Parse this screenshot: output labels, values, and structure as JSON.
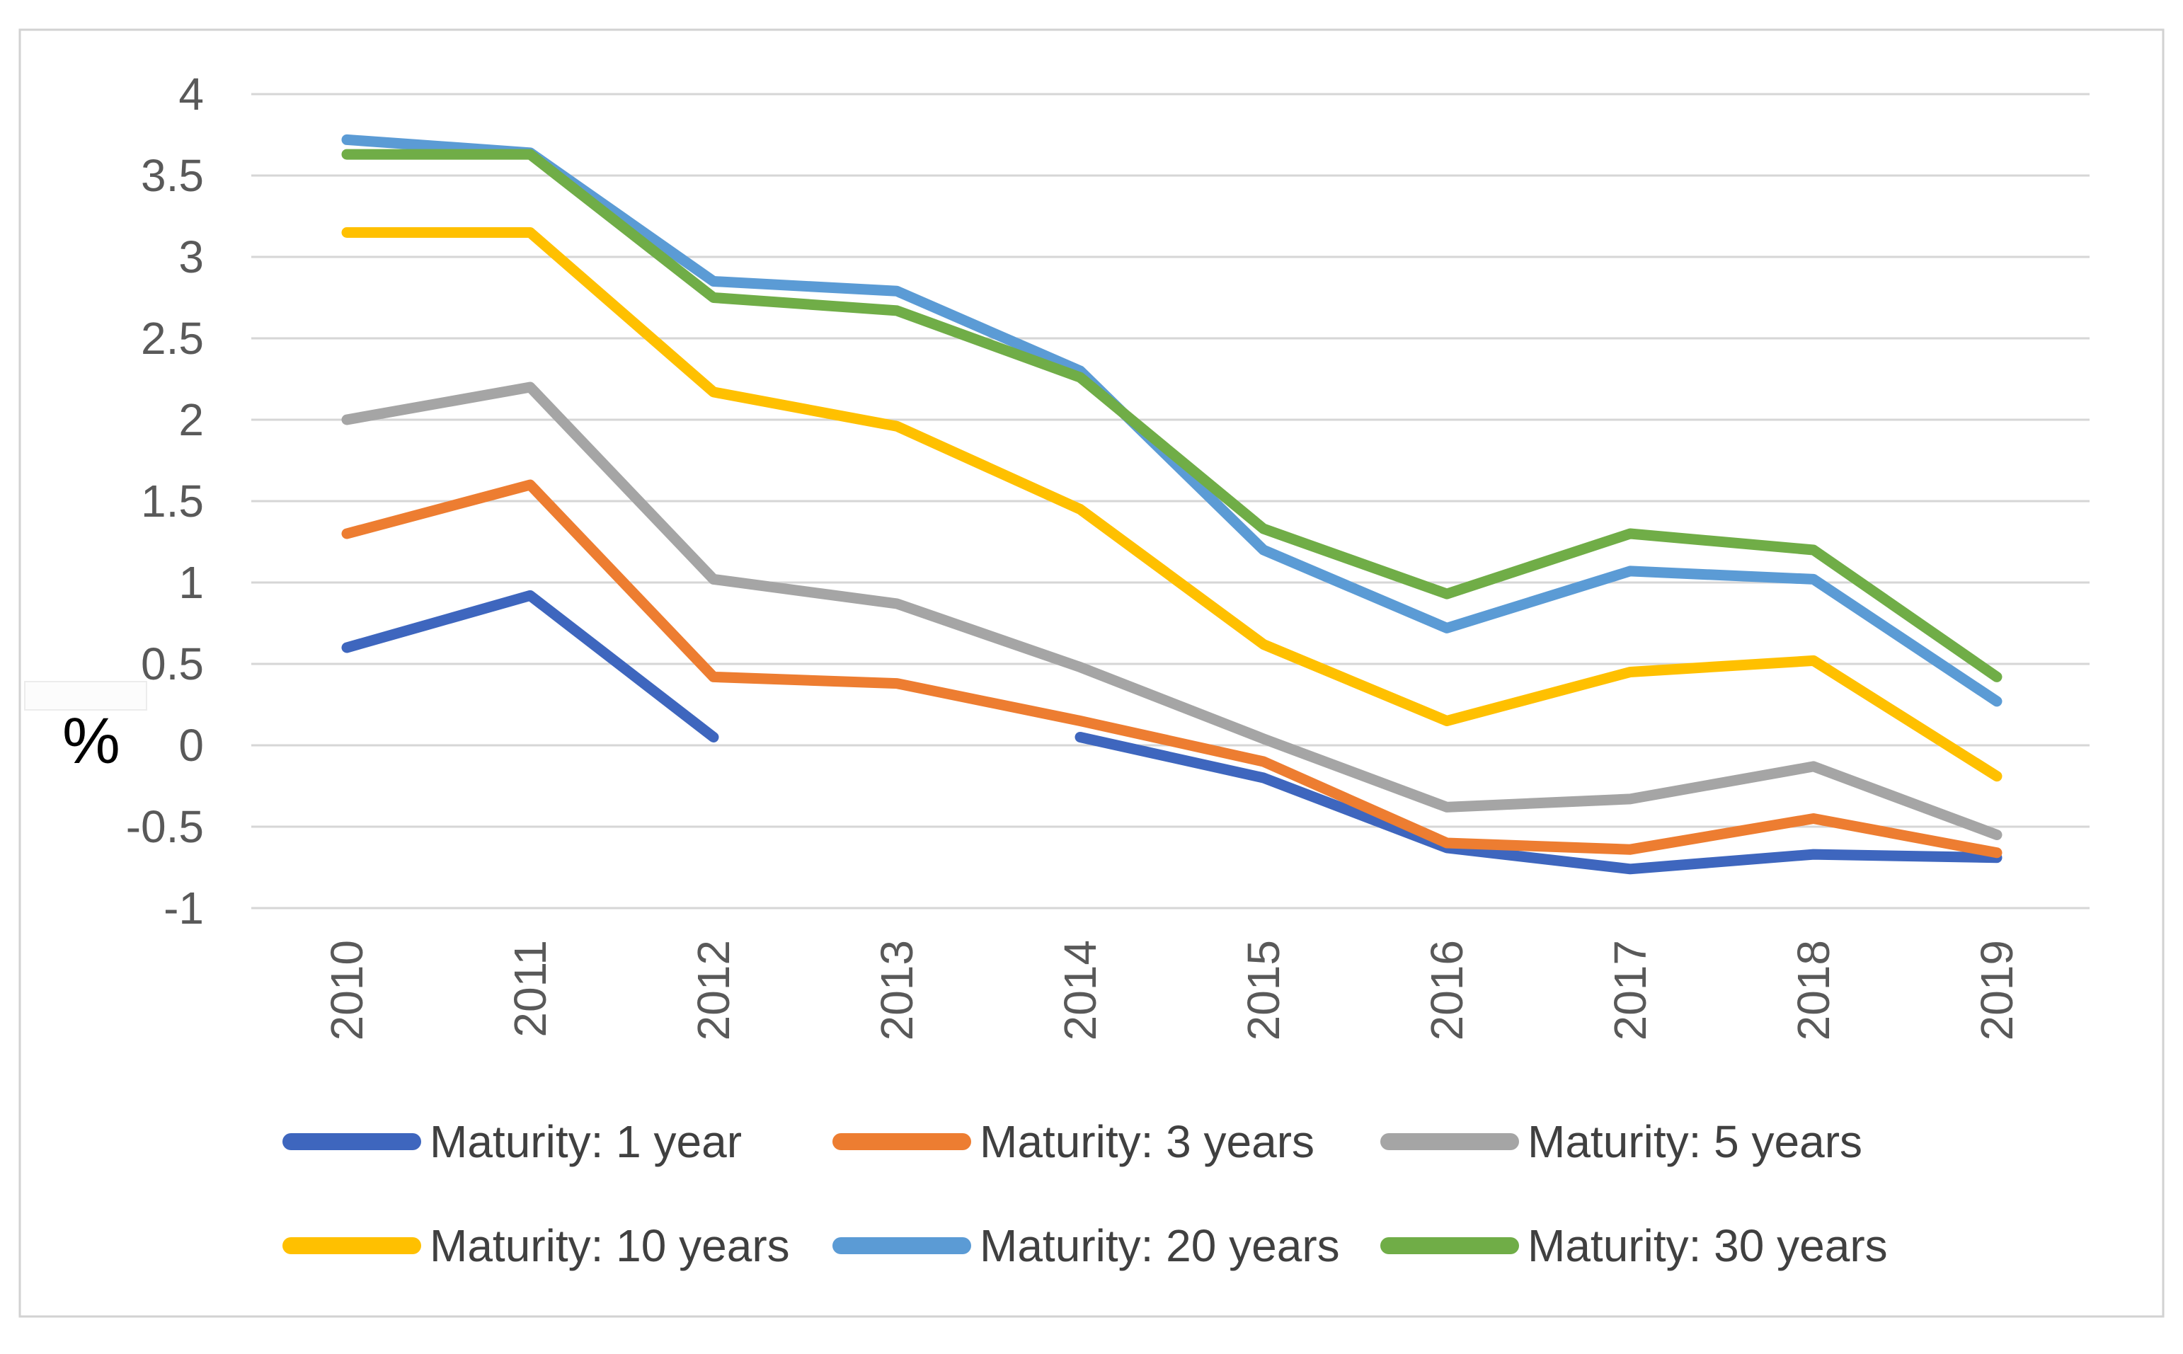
{
  "chart_data": {
    "type": "line",
    "title": "",
    "xlabel": "",
    "ylabel": "%",
    "categories": [
      "2010",
      "2011",
      "2012",
      "2013",
      "2014",
      "2015",
      "2016",
      "2017",
      "2018",
      "2019"
    ],
    "y_ticks": [
      "4",
      "3.5",
      "3",
      "2.5",
      "2",
      "1.5",
      "1",
      "0.5",
      "0",
      "-0.5",
      "-1"
    ],
    "y_tick_values": [
      4,
      3.5,
      3,
      2.5,
      2,
      1.5,
      1,
      0.5,
      0,
      -0.5,
      -1
    ],
    "ylim": [
      -1,
      4
    ],
    "grid": true,
    "legend_position": "bottom",
    "series": [
      {
        "name": "Maturity: 1 year",
        "color": "#3E66BE",
        "values": [
          0.6,
          0.92,
          0.05,
          null,
          0.05,
          -0.2,
          -0.63,
          -0.76,
          -0.67,
          -0.69
        ]
      },
      {
        "name": "Maturity: 3 years",
        "color": "#ED7D31",
        "values": [
          1.3,
          1.6,
          0.42,
          0.38,
          0.15,
          -0.1,
          -0.6,
          -0.64,
          -0.45,
          -0.66
        ]
      },
      {
        "name": "Maturity: 5 years",
        "color": "#A5A5A5",
        "values": [
          2.0,
          2.2,
          1.02,
          0.87,
          0.48,
          0.04,
          -0.38,
          -0.33,
          -0.13,
          -0.55
        ]
      },
      {
        "name": "Maturity: 10 years",
        "color": "#FFC000",
        "values": [
          3.15,
          3.15,
          2.17,
          1.96,
          1.45,
          0.62,
          0.15,
          0.45,
          0.52,
          -0.19
        ]
      },
      {
        "name": "Maturity: 20 years",
        "color": "#5B9BD5",
        "values": [
          3.72,
          3.64,
          2.85,
          2.79,
          2.3,
          1.2,
          0.72,
          1.07,
          1.02,
          0.27
        ]
      },
      {
        "name": "Maturity: 30 years",
        "color": "#70AD47",
        "values": [
          3.63,
          3.63,
          2.75,
          2.67,
          2.26,
          1.33,
          0.93,
          1.3,
          1.2,
          0.42
        ]
      }
    ],
    "colors": {
      "gridline": "#D6D6D6",
      "frame_border": "#D2D2D2",
      "tick_label": "#595959",
      "legend_label": "#404040",
      "ylabel_color": "#000000"
    }
  }
}
